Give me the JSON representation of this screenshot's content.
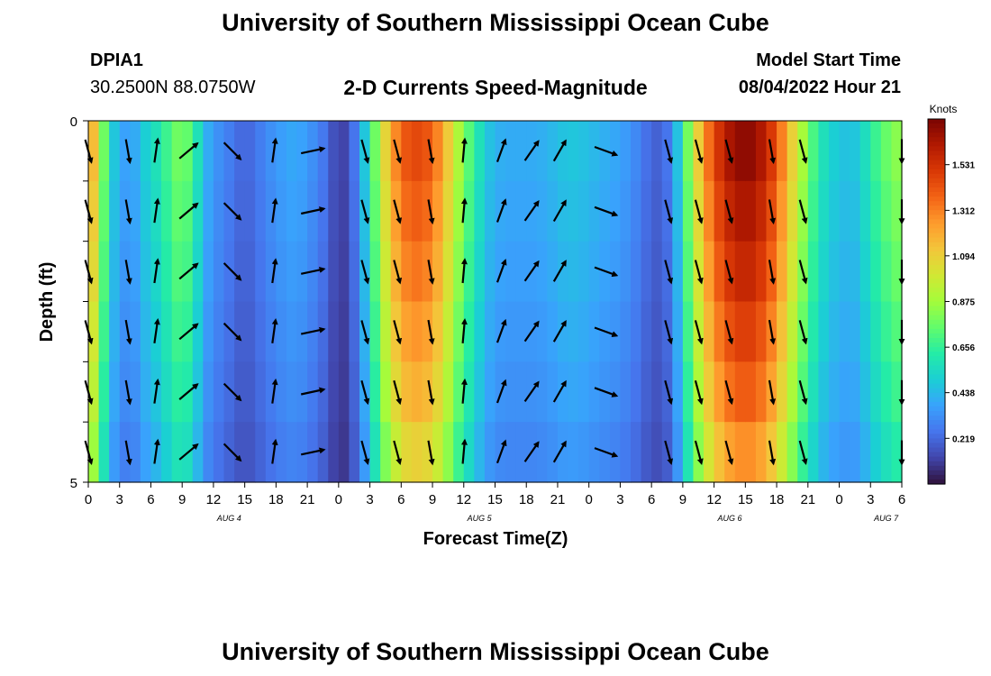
{
  "header": {
    "title": "University of Southern Mississippi Ocean Cube",
    "station_id": "DPIA1",
    "station_coords": "30.2500N  88.0750W",
    "subtitle": "2-D Currents Speed-Magnitude",
    "model_start_label": "Model Start Time",
    "model_start_value": "08/04/2022 Hour 21"
  },
  "footer": {
    "title": "University of Southern Mississippi Ocean Cube"
  },
  "chart_data": {
    "type": "heatmap",
    "xlabel": "Forecast Time(Z)",
    "ylabel": "Depth (ft)",
    "x_tick_labels": [
      "0",
      "3",
      "6",
      "9",
      "12",
      "15",
      "18",
      "21",
      "0",
      "3",
      "6",
      "9",
      "12",
      "15",
      "18",
      "21",
      "0",
      "3",
      "6",
      "9",
      "12",
      "15",
      "18",
      "21",
      "0",
      "3",
      "6"
    ],
    "date_labels": [
      {
        "label": "AUG 4",
        "tick_index": 4.5
      },
      {
        "label": "AUG 5",
        "tick_index": 12.5
      },
      {
        "label": "AUG 6",
        "tick_index": 20.5
      },
      {
        "label": "AUG 7",
        "tick_index": 25.5
      }
    ],
    "y_tick_labels": [
      "0",
      "5"
    ],
    "ylim": [
      0,
      5
    ],
    "depth_rows": 6,
    "time_range_hours": [
      0,
      78
    ],
    "colorbar": {
      "unit": "Knots",
      "ticks": [
        "1.531",
        "1.312",
        "1.094",
        "0.875",
        "0.656",
        "0.438",
        "0.219"
      ],
      "range": [
        0.0,
        1.75
      ],
      "colors": [
        "#30123b",
        "#4145ab",
        "#4675ed",
        "#39a2fc",
        "#1bcfd4",
        "#24eca6",
        "#61fc6c",
        "#a4fc3b",
        "#d1e834",
        "#f3c63a",
        "#fe9b2d",
        "#f36315",
        "#d93806",
        "#b11901",
        "#7a0402"
      ]
    },
    "speed_profile": [
      [
        0,
        1.3
      ],
      [
        1,
        1.0
      ],
      [
        2,
        0.55
      ],
      [
        3,
        0.4
      ],
      [
        4,
        0.35
      ],
      [
        5,
        0.45
      ],
      [
        6,
        0.55
      ],
      [
        7,
        0.6
      ],
      [
        8,
        0.75
      ],
      [
        9,
        0.8
      ],
      [
        10,
        0.7
      ],
      [
        11,
        0.45
      ],
      [
        12,
        0.35
      ],
      [
        13,
        0.3
      ],
      [
        14,
        0.25
      ],
      [
        15,
        0.2
      ],
      [
        16,
        0.25
      ],
      [
        17,
        0.3
      ],
      [
        18,
        0.35
      ],
      [
        19,
        0.38
      ],
      [
        20,
        0.4
      ],
      [
        21,
        0.35
      ],
      [
        22,
        0.3
      ],
      [
        23,
        0.22
      ],
      [
        24,
        0.1
      ],
      [
        25,
        0.15
      ],
      [
        26,
        0.35
      ],
      [
        27,
        0.6
      ],
      [
        28,
        0.95
      ],
      [
        29,
        1.2
      ],
      [
        30,
        1.38
      ],
      [
        31,
        1.45
      ],
      [
        32,
        1.45
      ],
      [
        33,
        1.38
      ],
      [
        34,
        1.22
      ],
      [
        35,
        1.0
      ],
      [
        36,
        0.8
      ],
      [
        37,
        0.65
      ],
      [
        38,
        0.5
      ],
      [
        39,
        0.42
      ],
      [
        40,
        0.4
      ],
      [
        41,
        0.4
      ],
      [
        42,
        0.4
      ],
      [
        43,
        0.4
      ],
      [
        44,
        0.42
      ],
      [
        45,
        0.45
      ],
      [
        46,
        0.48
      ],
      [
        47,
        0.47
      ],
      [
        48,
        0.45
      ],
      [
        49,
        0.42
      ],
      [
        50,
        0.4
      ],
      [
        51,
        0.38
      ],
      [
        52,
        0.33
      ],
      [
        53,
        0.28
      ],
      [
        54,
        0.2
      ],
      [
        55,
        0.2
      ],
      [
        56,
        0.3
      ],
      [
        57,
        0.62
      ],
      [
        58,
        0.95
      ],
      [
        59,
        1.25
      ],
      [
        60,
        1.45
      ],
      [
        61,
        1.6
      ],
      [
        62,
        1.68
      ],
      [
        63,
        1.72
      ],
      [
        64,
        1.68
      ],
      [
        65,
        1.58
      ],
      [
        66,
        1.42
      ],
      [
        67,
        1.2
      ],
      [
        68,
        0.98
      ],
      [
        69,
        0.78
      ],
      [
        70,
        0.62
      ],
      [
        71,
        0.52
      ],
      [
        72,
        0.48
      ],
      [
        73,
        0.45
      ],
      [
        74,
        0.5
      ],
      [
        75,
        0.62
      ],
      [
        76,
        0.72
      ],
      [
        77,
        0.8
      ],
      [
        78,
        0.85
      ]
    ],
    "depth_factor": [
      1.0,
      0.96,
      0.92,
      0.87,
      0.82,
      0.75
    ],
    "arrow_hours": [
      0,
      3.8,
      6.5,
      9.6,
      13.8,
      17.8,
      21.5,
      26.5,
      29.6,
      32.8,
      36.0,
      39.6,
      42.5,
      45.2,
      49.6,
      55.6,
      58.5,
      61.4,
      65.5,
      68.5,
      78
    ],
    "arrow_directions_deg": [
      165,
      170,
      8,
      50,
      135,
      8,
      78,
      165,
      165,
      170,
      5,
      20,
      35,
      30,
      110,
      165,
      165,
      165,
      170,
      165,
      180
    ]
  }
}
